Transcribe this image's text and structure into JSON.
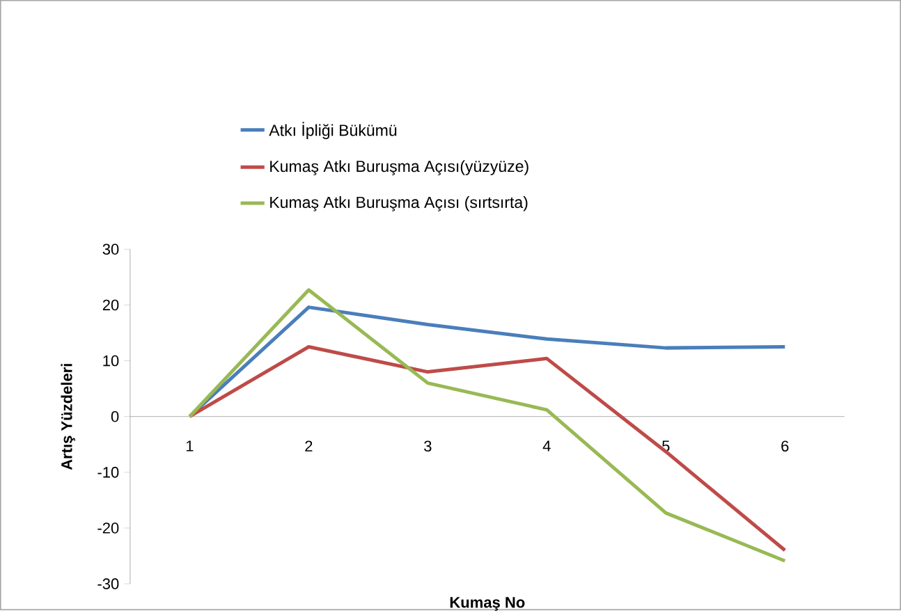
{
  "chart_data": {
    "type": "line",
    "xlabel": "Kumaş No",
    "ylabel": "Artış Yüzdeleri",
    "categories": [
      "1",
      "2",
      "3",
      "4",
      "5",
      "6"
    ],
    "series": [
      {
        "name": "Atkı İpliği Bükümü",
        "color": "#4a7ebb",
        "values": [
          0,
          19.6,
          16.5,
          13.9,
          12.3,
          12.5
        ]
      },
      {
        "name": "Kumaş Atkı Buruşma Açısı(yüzyüze)",
        "color": "#be4b48",
        "values": [
          0,
          12.5,
          8.0,
          10.4,
          -6.3,
          -24.0
        ]
      },
      {
        "name": "Kumaş Atkı Buruşma Açısı (sırtsırta)",
        "color": "#98b954",
        "values": [
          0,
          22.7,
          6.0,
          1.2,
          -17.3,
          -25.9
        ]
      }
    ],
    "ylim": [
      -30,
      30
    ],
    "yticks": [
      -30,
      -20,
      -10,
      0,
      10,
      20,
      30
    ],
    "grid": false,
    "legend": "top",
    "marker": "none",
    "line_style": "solid"
  }
}
